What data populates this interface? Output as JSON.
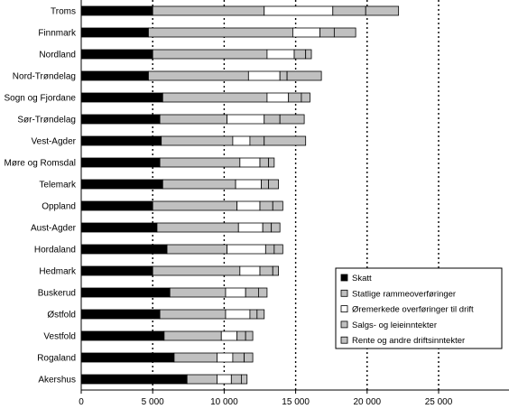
{
  "chart_data": {
    "type": "bar",
    "stacked": true,
    "orientation": "horizontal",
    "title": "",
    "xlabel": "",
    "ylabel": "",
    "xlim": [
      0,
      25000
    ],
    "x_ticks": [
      0,
      5000,
      10000,
      15000,
      20000,
      25000
    ],
    "x_tick_labels": [
      "0",
      "5 000",
      "10 000",
      "15 000",
      "20 000",
      "25 000"
    ],
    "gridlines": "vertical dotted at tick values",
    "legend_position": "lower-right",
    "categories": [
      "Troms",
      "Finnmark",
      "Nordland",
      "Nord-Trøndelag",
      "Sogn og Fjordane",
      "Sør-Trøndelag",
      "Vest-Agder",
      "Møre og Romsdal",
      "Telemark",
      "Oppland",
      "Aust-Agder",
      "Hordaland",
      "Hedmark",
      "Buskerud",
      "Østfold",
      "Vestfold",
      "Rogaland",
      "Akershus"
    ],
    "series": [
      {
        "name": "Skatt",
        "color": "#000000",
        "values": [
          5000,
          4700,
          5000,
          4700,
          5700,
          5500,
          5600,
          5500,
          5700,
          5000,
          5300,
          6000,
          5000,
          6200,
          5500,
          5800,
          6500,
          7400
        ]
      },
      {
        "name": "Statlige rammeoverføringer",
        "color": "#c0c0c0",
        "values": [
          7800,
          10100,
          8000,
          7000,
          7300,
          4700,
          5000,
          5600,
          5100,
          5900,
          5700,
          4200,
          6100,
          3900,
          4600,
          4000,
          3000,
          2100
        ]
      },
      {
        "name": "Øremerkede overføringer til drift",
        "color": "#ffffff",
        "values": [
          4800,
          1900,
          1900,
          2200,
          1500,
          2600,
          1200,
          1400,
          1800,
          1600,
          1700,
          2700,
          1400,
          1400,
          1700,
          1100,
          1100,
          1000
        ]
      },
      {
        "name": "Salgs- og leieinntekter",
        "color": "#c0c0c0",
        "values": [
          2300,
          1000,
          800,
          500,
          900,
          1100,
          1000,
          600,
          500,
          900,
          600,
          600,
          900,
          900,
          500,
          600,
          800,
          700
        ]
      },
      {
        "name": "Rente og andre driftsinntekter",
        "color": "#c0c0c0",
        "values": [
          2300,
          1500,
          400,
          2400,
          600,
          1700,
          2900,
          400,
          700,
          700,
          600,
          600,
          400,
          600,
          500,
          500,
          600,
          400
        ]
      }
    ]
  }
}
